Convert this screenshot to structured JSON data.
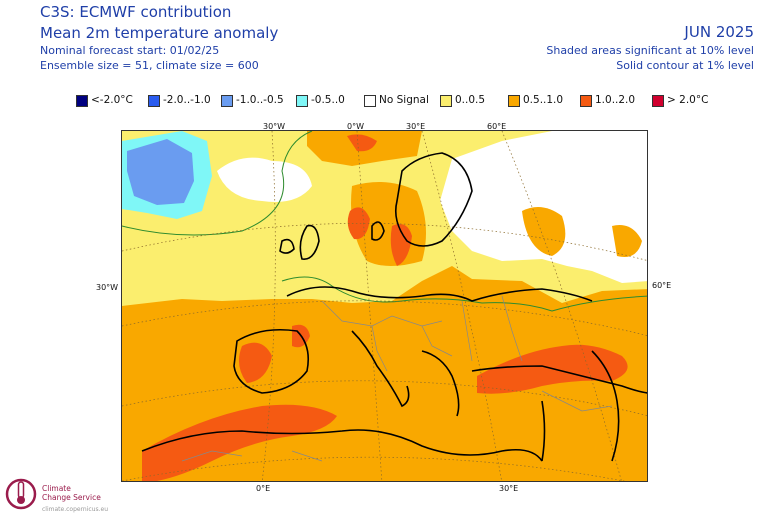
{
  "header": {
    "title_line1": "C3S: ECMWF contribution",
    "title_line2": "Mean 2m temperature anomaly",
    "forecast_start": "Nominal forecast start: 01/02/25",
    "ensemble": "Ensemble size = 51, climate size = 600",
    "month": "JUN 2025",
    "significance_shaded": "Shaded areas significant at 10% level",
    "significance_contour": "Solid contour at 1% level"
  },
  "legend": [
    {
      "label": "<-2.0°C",
      "color": "#00007f"
    },
    {
      "label": "-2.0..-1.0",
      "color": "#2a5cf0"
    },
    {
      "label": "-1.0..-0.5",
      "color": "#6a9cf0"
    },
    {
      "label": "-0.5..0",
      "color": "#7ff7f7"
    },
    {
      "label": "No Signal",
      "color": "#ffffff"
    },
    {
      "label": "0..0.5",
      "color": "#fbee6e"
    },
    {
      "label": "0.5..1.0",
      "color": "#f9a800"
    },
    {
      "label": "1.0..2.0",
      "color": "#f55a12"
    },
    {
      "label": "> 2.0°C",
      "color": "#d0002e"
    }
  ],
  "axis_labels": {
    "top_30w": "30°W",
    "top_0": "0°W",
    "top_30e": "30°E",
    "top_60e": "60°E",
    "left_30w": "30°W",
    "right_60e": "60°E",
    "bottom_0": "0°E",
    "bottom_30e": "30°E"
  },
  "logo": {
    "line1": "Climate",
    "line2": "Change Service",
    "url": "climate.copernicus.eu",
    "icon": "thermometer-globe-icon"
  }
}
